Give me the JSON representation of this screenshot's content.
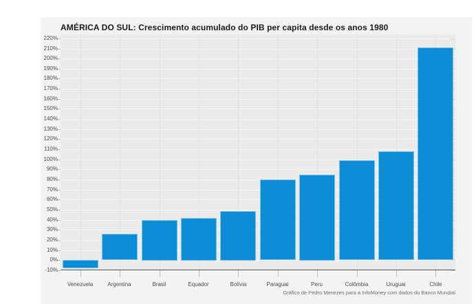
{
  "chart_data": {
    "type": "bar",
    "title": "AMÉRICA DO SUL: Crescimento acumulado do PIB per capita desde os anos 1980",
    "caption": "Gráfico de Pedro Menezes para a InfoMoney com dados do Banco Mundial",
    "categories": [
      "Venezuela",
      "Argentina",
      "Brasil",
      "Equador",
      "Bolívia",
      "Paraguai",
      "Peru",
      "Colômbia",
      "Uruguai",
      "Chile"
    ],
    "values": [
      -8,
      26,
      40,
      42,
      49,
      80,
      85,
      99,
      108,
      211
    ],
    "unit": "%",
    "xlabel": "",
    "ylabel": "",
    "ylim": [
      -10,
      224
    ],
    "ytick_min": -10,
    "ytick_max": 220,
    "ytick_step": 10,
    "grid": true,
    "legend": false,
    "colors": {
      "bar": "#0d8dd6",
      "card_bg": "#f3f3f3",
      "plot_bg": "#ebebeb",
      "hgrid": "#f7f7f7",
      "vgrid": "#e2e2e2",
      "axis_line": "#4d4d4d",
      "tick": "#bfbfbf",
      "tick_right": "#d6d6d6",
      "title": "#1a1a1a",
      "axis_label": "#4a4a4a",
      "caption": "#6e6e6e"
    }
  }
}
